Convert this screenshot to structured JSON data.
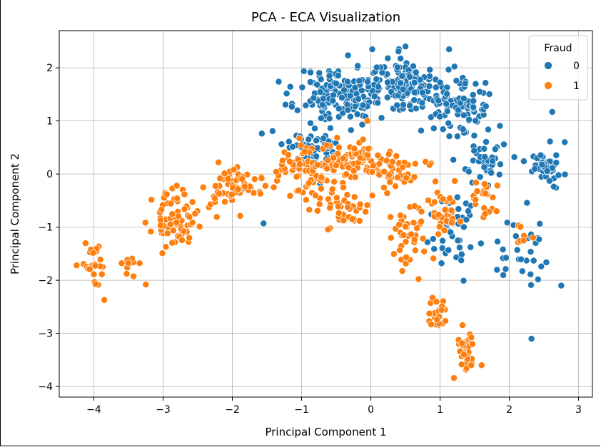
{
  "chart_data": {
    "type": "scatter",
    "title": "PCA - ECA Visualization",
    "xlabel": "Principal Component 1",
    "ylabel": "Principal Component 2",
    "xlim": [
      -4.5,
      3.2
    ],
    "ylim": [
      -4.2,
      2.7
    ],
    "xticks": [
      -4,
      -3,
      -2,
      -1,
      0,
      1,
      2,
      3
    ],
    "yticks": [
      -4,
      -3,
      -2,
      -1,
      0,
      1,
      2
    ],
    "grid": true,
    "legend": {
      "title": "Fraud",
      "placement": "top-right"
    },
    "series": [
      {
        "name": "0",
        "color": "#1f77b4",
        "clusters": [
          {
            "center": [
              -0.4,
              1.5
            ],
            "spread": [
              0.55,
              0.45
            ],
            "count": 170,
            "seed": 11
          },
          {
            "center": [
              0.55,
              1.65
            ],
            "spread": [
              0.45,
              0.45
            ],
            "count": 120,
            "seed": 12
          },
          {
            "center": [
              1.3,
              1.25
            ],
            "spread": [
              0.4,
              0.45
            ],
            "count": 90,
            "seed": 13
          },
          {
            "center": [
              -0.7,
              0.5
            ],
            "spread": [
              0.5,
              0.35
            ],
            "count": 60,
            "seed": 14
          },
          {
            "center": [
              2.55,
              0.15
            ],
            "spread": [
              0.18,
              0.3
            ],
            "count": 45,
            "seed": 15
          },
          {
            "center": [
              1.2,
              -1.1
            ],
            "spread": [
              0.3,
              0.6
            ],
            "count": 45,
            "seed": 16
          },
          {
            "center": [
              2.2,
              -1.5
            ],
            "spread": [
              0.35,
              0.6
            ],
            "count": 30,
            "seed": 17
          },
          {
            "center": [
              1.6,
              0.2
            ],
            "spread": [
              0.3,
              0.35
            ],
            "count": 35,
            "seed": 18
          }
        ],
        "points": [
          [
            0.02,
            2.35
          ],
          [
            0.5,
            2.4
          ],
          [
            1.13,
            2.35
          ],
          [
            2.32,
            -3.1
          ],
          [
            2.8,
            0.6
          ],
          [
            -1.55,
            -0.93
          ],
          [
            2.62,
            1.17
          ],
          [
            2.75,
            -2.1
          ]
        ]
      },
      {
        "name": "1",
        "color": "#ff7f0e",
        "clusters": [
          {
            "center": [
              -4.0,
              -1.7
            ],
            "spread": [
              0.15,
              0.38
            ],
            "count": 22,
            "seed": 21
          },
          {
            "center": [
              -3.5,
              -1.7
            ],
            "spread": [
              0.12,
              0.2
            ],
            "count": 10,
            "seed": 22
          },
          {
            "center": [
              -2.85,
              -0.85
            ],
            "spread": [
              0.25,
              0.42
            ],
            "count": 75,
            "seed": 23
          },
          {
            "center": [
              -2.0,
              -0.3
            ],
            "spread": [
              0.35,
              0.35
            ],
            "count": 65,
            "seed": 24
          },
          {
            "center": [
              -0.8,
              0.1
            ],
            "spread": [
              0.45,
              0.35
            ],
            "count": 90,
            "seed": 25
          },
          {
            "center": [
              -0.2,
              0.3
            ],
            "spread": [
              0.35,
              0.3
            ],
            "count": 55,
            "seed": 26
          },
          {
            "center": [
              0.3,
              0.1
            ],
            "spread": [
              0.35,
              0.35
            ],
            "count": 50,
            "seed": 27
          },
          {
            "center": [
              -0.4,
              -0.6
            ],
            "spread": [
              0.35,
              0.35
            ],
            "count": 40,
            "seed": 28
          },
          {
            "center": [
              0.5,
              -1.2
            ],
            "spread": [
              0.3,
              0.5
            ],
            "count": 40,
            "seed": 29
          },
          {
            "center": [
              0.95,
              -2.6
            ],
            "spread": [
              0.12,
              0.3
            ],
            "count": 25,
            "seed": 30
          },
          {
            "center": [
              1.35,
              -3.3
            ],
            "spread": [
              0.12,
              0.35
            ],
            "count": 30,
            "seed": 31
          },
          {
            "center": [
              1.05,
              -0.6
            ],
            "spread": [
              0.25,
              0.4
            ],
            "count": 35,
            "seed": 32
          },
          {
            "center": [
              1.65,
              -0.5
            ],
            "spread": [
              0.15,
              0.3
            ],
            "count": 20,
            "seed": 33
          },
          {
            "center": [
              2.2,
              -1.2
            ],
            "spread": [
              0.1,
              0.2
            ],
            "count": 8,
            "seed": 34
          }
        ],
        "points": [
          [
            -4.25,
            -1.72
          ],
          [
            -3.85,
            -2.37
          ],
          [
            -3.25,
            -2.08
          ],
          [
            -2.2,
            0.22
          ],
          [
            1.2,
            -3.84
          ],
          [
            1.45,
            -3.6
          ],
          [
            1.6,
            -3.6
          ],
          [
            -0.05,
            1.0
          ]
        ]
      }
    ]
  }
}
